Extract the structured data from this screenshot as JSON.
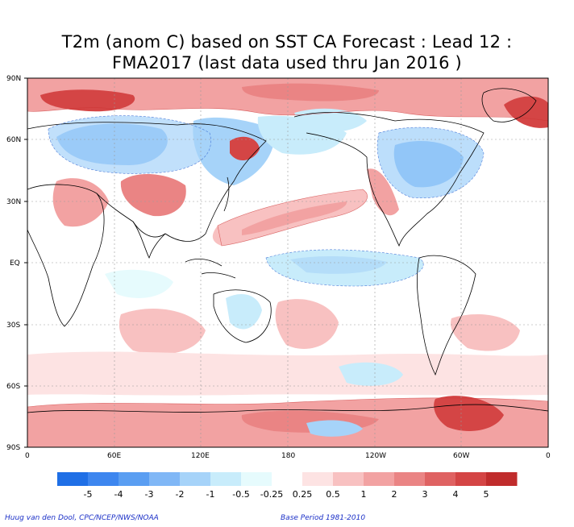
{
  "title": {
    "line1": "T2m (anom C) based on SST CA Forecast : Lead 12 :",
    "line2": "FMA2017 (last data used thru Jan 2016 )"
  },
  "axes": {
    "lat_labels": [
      "90N",
      "60N",
      "30N",
      "EQ",
      "30S",
      "60S",
      "90S"
    ],
    "lon_labels": [
      "0",
      "60E",
      "120E",
      "180",
      "120W",
      "60W",
      "0"
    ]
  },
  "colorbar": {
    "labels": [
      "-5",
      "-4",
      "-3",
      "-2",
      "-1",
      "-0.5",
      "-0.25",
      "0.25",
      "0.5",
      "1",
      "2",
      "3",
      "4",
      "5"
    ],
    "colors": [
      "#1f6fe6",
      "#3d86ef",
      "#5a9ef2",
      "#80b7f6",
      "#a6d3f9",
      "#c8ecfb",
      "#e6fbfd",
      "#ffffff",
      "#fde3e3",
      "#f8c1c1",
      "#f2a2a2",
      "#ea8484",
      "#df6262",
      "#d44545",
      "#c02c2c"
    ]
  },
  "credits": {
    "left": "Huug van den Dool, CPC/NCEP/NWS/NOAA",
    "right": "Base Period 1981-2010"
  }
}
